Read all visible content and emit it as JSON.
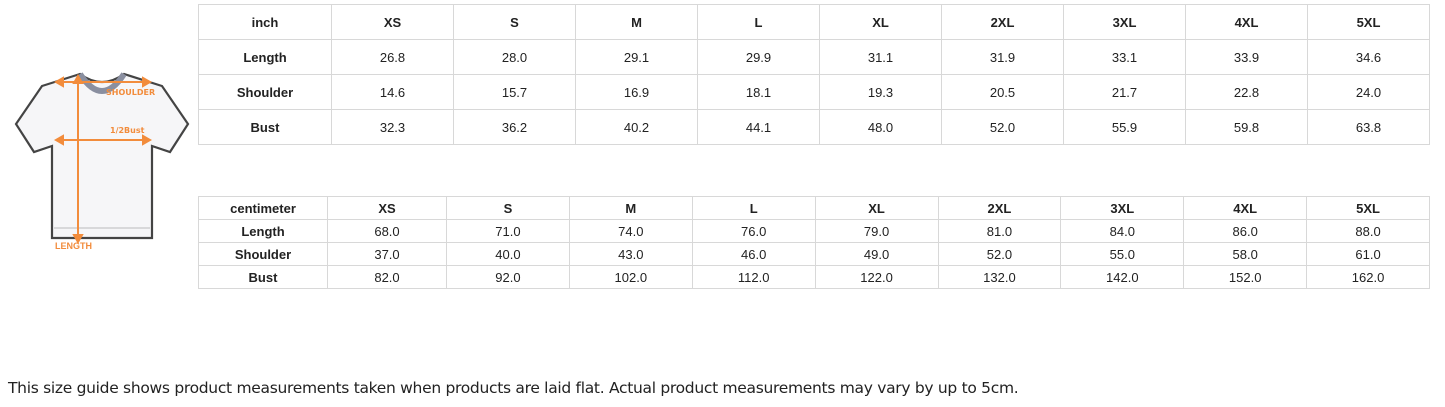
{
  "diagram": {
    "labels": {
      "shoulder": "SHOULDER",
      "bust": "1/2Bust",
      "length": "LENGTH"
    },
    "accent": "#f28c3c"
  },
  "inch_table": {
    "header": [
      "inch",
      "XS",
      "S",
      "M",
      "L",
      "XL",
      "2XL",
      "3XL",
      "4XL",
      "5XL"
    ],
    "rows": [
      [
        "Length",
        "26.8",
        "28.0",
        "29.1",
        "29.9",
        "31.1",
        "31.9",
        "33.1",
        "33.9",
        "34.6"
      ],
      [
        "Shoulder",
        "14.6",
        "15.7",
        "16.9",
        "18.1",
        "19.3",
        "20.5",
        "21.7",
        "22.8",
        "24.0"
      ],
      [
        "Bust",
        "32.3",
        "36.2",
        "40.2",
        "44.1",
        "48.0",
        "52.0",
        "55.9",
        "59.8",
        "63.8"
      ]
    ]
  },
  "cm_table": {
    "header": [
      "centimeter",
      "XS",
      "S",
      "M",
      "L",
      "XL",
      "2XL",
      "3XL",
      "4XL",
      "5XL"
    ],
    "rows": [
      [
        "Length",
        "68.0",
        "71.0",
        "74.0",
        "76.0",
        "79.0",
        "81.0",
        "84.0",
        "86.0",
        "88.0"
      ],
      [
        "Shoulder",
        "37.0",
        "40.0",
        "43.0",
        "46.0",
        "49.0",
        "52.0",
        "55.0",
        "58.0",
        "61.0"
      ],
      [
        "Bust",
        "82.0",
        "92.0",
        "102.0",
        "112.0",
        "122.0",
        "132.0",
        "142.0",
        "152.0",
        "162.0"
      ]
    ]
  },
  "caption": "This size guide shows product measurements taken when products are laid flat. Actual product measurements may vary by up to 5cm."
}
